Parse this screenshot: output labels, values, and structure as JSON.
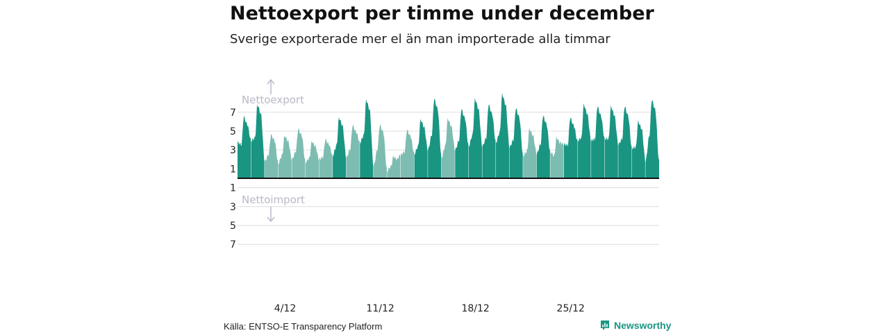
{
  "header": {
    "title": "Nettoexport per timme under december",
    "subtitle": "Sverige exporterade mer el än man importerade alla timmar"
  },
  "footer": {
    "source": "Källa: ENTSO-E Transparency Platform",
    "brand": "Newsworthy"
  },
  "colors": {
    "bar_dark": "#1a9582",
    "bar_light": "#7dbcb1",
    "grid": "#dddddd",
    "zero_line": "#111111",
    "annotation": "#b8b8c8",
    "tick": "#222222"
  },
  "chart_data": {
    "type": "bar",
    "xlabel": "",
    "ylabel": "",
    "ylim": [
      -7.5,
      8.5
    ],
    "yticks": [
      7,
      5,
      3,
      1,
      -1,
      -3,
      -5,
      -7
    ],
    "ytick_labels": [
      "7",
      "5",
      "3",
      "1",
      "1",
      "3",
      "5",
      "7"
    ],
    "x_ticks": [
      {
        "label": "4/12",
        "day": 4
      },
      {
        "label": "11/12",
        "day": 11
      },
      {
        "label": "18/12",
        "day": 18
      },
      {
        "label": "25/12",
        "day": 25
      }
    ],
    "annotations": {
      "up": "Nettoexport",
      "down": "Nettoimport"
    },
    "start_day": 1,
    "hours": 744,
    "days": [
      {
        "day": 1,
        "peak": 6.5,
        "low": 3.8,
        "shade": "dark"
      },
      {
        "day": 2,
        "peak": 7.8,
        "low": 4.0,
        "shade": "dark"
      },
      {
        "day": 3,
        "peak": 4.6,
        "low": 1.8,
        "shade": "light"
      },
      {
        "day": 4,
        "peak": 4.5,
        "low": 1.6,
        "shade": "light"
      },
      {
        "day": 5,
        "peak": 5.2,
        "low": 2.0,
        "shade": "light"
      },
      {
        "day": 6,
        "peak": 3.9,
        "low": 1.7,
        "shade": "light"
      },
      {
        "day": 7,
        "peak": 4.1,
        "low": 2.0,
        "shade": "light"
      },
      {
        "day": 8,
        "peak": 6.4,
        "low": 2.4,
        "shade": "dark"
      },
      {
        "day": 9,
        "peak": 5.6,
        "low": 2.2,
        "shade": "light"
      },
      {
        "day": 10,
        "peak": 8.3,
        "low": 3.8,
        "shade": "dark"
      },
      {
        "day": 11,
        "peak": 5.6,
        "low": 1.3,
        "shade": "light"
      },
      {
        "day": 12,
        "peak": 2.3,
        "low": 0.8,
        "shade": "light"
      },
      {
        "day": 13,
        "peak": 5.1,
        "low": 2.5,
        "shade": "light"
      },
      {
        "day": 14,
        "peak": 6.2,
        "low": 2.6,
        "shade": "dark"
      },
      {
        "day": 15,
        "peak": 8.4,
        "low": 3.0,
        "shade": "dark"
      },
      {
        "day": 16,
        "peak": 6.3,
        "low": 2.2,
        "shade": "light"
      },
      {
        "day": 17,
        "peak": 7.3,
        "low": 3.0,
        "shade": "dark"
      },
      {
        "day": 18,
        "peak": 8.4,
        "low": 3.4,
        "shade": "dark"
      },
      {
        "day": 19,
        "peak": 7.8,
        "low": 3.4,
        "shade": "dark"
      },
      {
        "day": 20,
        "peak": 8.9,
        "low": 3.8,
        "shade": "dark"
      },
      {
        "day": 21,
        "peak": 7.4,
        "low": 3.3,
        "shade": "dark"
      },
      {
        "day": 22,
        "peak": 5.2,
        "low": 2.4,
        "shade": "light"
      },
      {
        "day": 23,
        "peak": 6.6,
        "low": 2.6,
        "shade": "dark"
      },
      {
        "day": 24,
        "peak": 4.3,
        "low": 2.8,
        "shade": "light"
      },
      {
        "day": 25,
        "peak": 6.4,
        "low": 3.6,
        "shade": "dark"
      },
      {
        "day": 26,
        "peak": 7.8,
        "low": 4.0,
        "shade": "dark"
      },
      {
        "day": 27,
        "peak": 7.6,
        "low": 4.0,
        "shade": "dark"
      },
      {
        "day": 28,
        "peak": 7.6,
        "low": 4.2,
        "shade": "dark"
      },
      {
        "day": 29,
        "peak": 7.6,
        "low": 3.6,
        "shade": "dark"
      },
      {
        "day": 30,
        "peak": 6.0,
        "low": 3.2,
        "shade": "dark"
      },
      {
        "day": 31,
        "peak": 8.3,
        "low": 1.8,
        "shade": "dark"
      }
    ]
  }
}
